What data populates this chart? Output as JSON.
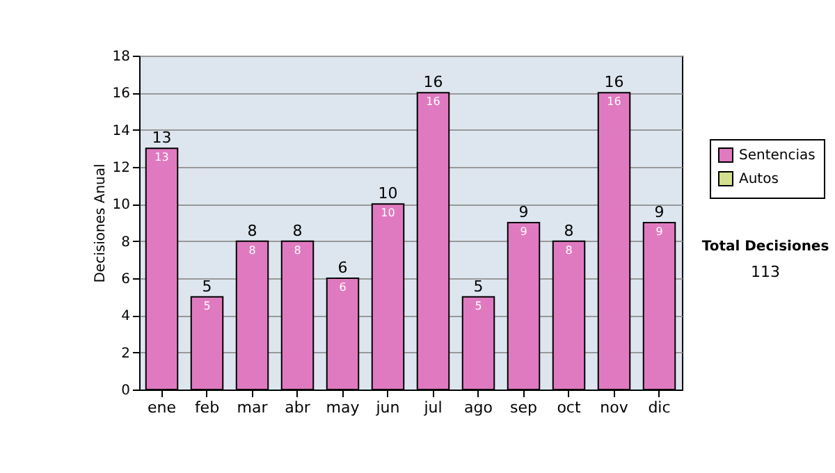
{
  "chart_data": {
    "type": "bar",
    "ylabel": "Decisiones Anual",
    "categories": [
      "ene",
      "feb",
      "mar",
      "abr",
      "may",
      "jun",
      "jul",
      "ago",
      "sep",
      "oct",
      "nov",
      "dic"
    ],
    "series": [
      {
        "name": "Sentencias",
        "color": "#e07ac0",
        "values": [
          13,
          5,
          8,
          8,
          6,
          10,
          16,
          5,
          9,
          8,
          16,
          9
        ]
      },
      {
        "name": "Autos",
        "color": "#d4e08c",
        "values": [
          null,
          null,
          null,
          null,
          null,
          null,
          null,
          null,
          null,
          null,
          null,
          null
        ]
      }
    ],
    "data_labels": true,
    "totals": [
      "13",
      "5",
      "8",
      "8",
      "6",
      "10",
      "16",
      "5",
      "9",
      "8",
      "16",
      "9"
    ],
    "ylim": [
      0,
      18
    ],
    "yticks": [
      0,
      2,
      4,
      6,
      8,
      10,
      12,
      14,
      16,
      18
    ],
    "grid": "y",
    "legend": "right",
    "annotations": [
      "Total Decisiones",
      "113"
    ]
  }
}
